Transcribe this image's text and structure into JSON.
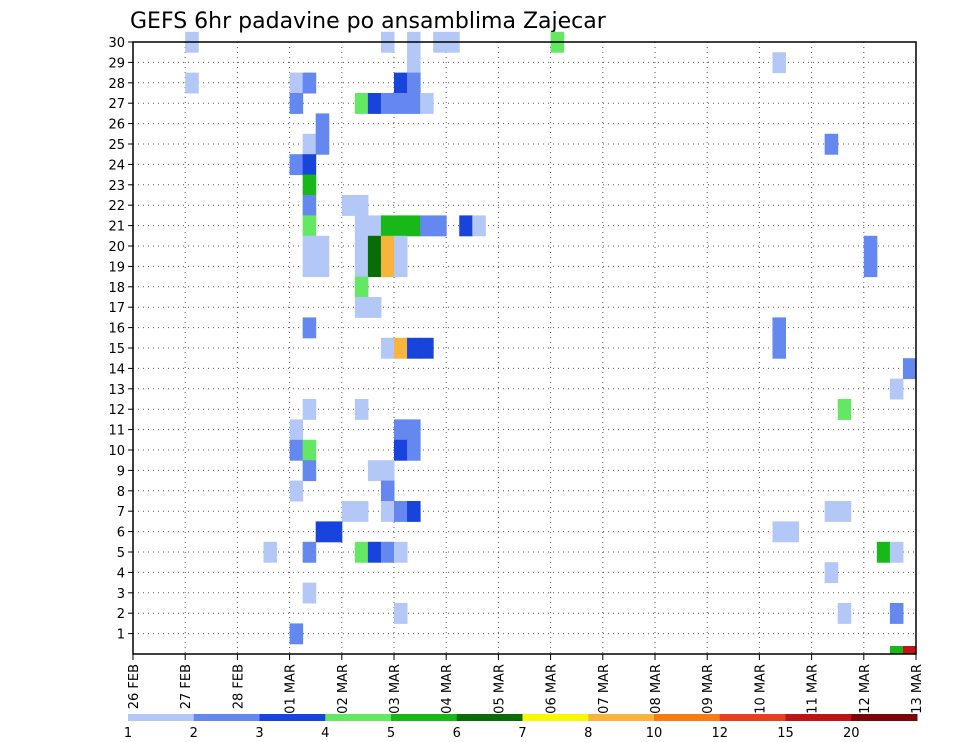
{
  "chart_data": {
    "type": "heatmap",
    "title": "GEFS 6hr padavine po ansamblima Zajecar",
    "x_tick_labels": [
      "26 FEB",
      "27 FEB",
      "28 FEB",
      "01 MAR",
      "02 MAR",
      "03 MAR",
      "04 MAR",
      "05 MAR",
      "06 MAR",
      "07 MAR",
      "08 MAR",
      "09 MAR",
      "10 MAR",
      "11 MAR",
      "12 MAR",
      "13 MAR"
    ],
    "y_tick_labels": [
      "1",
      "2",
      "3",
      "4",
      "5",
      "6",
      "7",
      "8",
      "9",
      "10",
      "11",
      "12",
      "13",
      "14",
      "15",
      "16",
      "17",
      "18",
      "19",
      "20",
      "21",
      "22",
      "23",
      "24",
      "25",
      "26",
      "27",
      "28",
      "29",
      "30"
    ],
    "ylim": [
      0,
      30
    ],
    "x_range_days": [
      0,
      15
    ],
    "time_step_hours": 6,
    "grid": true,
    "colorbar": {
      "placement": "bottom",
      "colors": [
        "#b4c8f8",
        "#6488f0",
        "#1844dc",
        "#64e864",
        "#18b818",
        "#086c08",
        "#f8f800",
        "#f8b43c",
        "#f87c14",
        "#e8401c",
        "#c01414",
        "#780808"
      ],
      "labels": [
        "1",
        "2",
        "3",
        "4",
        "5",
        "6",
        "7",
        "8",
        "10",
        "12",
        "15",
        "20"
      ]
    },
    "cells": [
      {
        "member": 30,
        "step": 4,
        "class": 0
      },
      {
        "member": 30,
        "step": 19,
        "class": 0
      },
      {
        "member": 30,
        "step": 21,
        "class": 0
      },
      {
        "member": 30,
        "step": 23,
        "class": 0
      },
      {
        "member": 30,
        "step": 24,
        "class": 0
      },
      {
        "member": 30,
        "step": 32,
        "class": 3
      },
      {
        "member": 29,
        "step": 21,
        "class": 0
      },
      {
        "member": 29,
        "step": 49,
        "class": 0
      },
      {
        "member": 28,
        "step": 4,
        "class": 0
      },
      {
        "member": 28,
        "step": 12,
        "class": 0
      },
      {
        "member": 28,
        "step": 13,
        "class": 1
      },
      {
        "member": 28,
        "step": 20,
        "class": 2
      },
      {
        "member": 28,
        "step": 21,
        "class": 1
      },
      {
        "member": 27,
        "step": 12,
        "class": 1
      },
      {
        "member": 27,
        "step": 17,
        "class": 3
      },
      {
        "member": 27,
        "step": 18,
        "class": 2
      },
      {
        "member": 27,
        "step": 19,
        "class": 1
      },
      {
        "member": 27,
        "step": 20,
        "class": 1
      },
      {
        "member": 27,
        "step": 21,
        "class": 1
      },
      {
        "member": 27,
        "step": 22,
        "class": 0
      },
      {
        "member": 26,
        "step": 14,
        "class": 1
      },
      {
        "member": 25,
        "step": 13,
        "class": 0
      },
      {
        "member": 25,
        "step": 14,
        "class": 1
      },
      {
        "member": 25,
        "step": 53,
        "class": 1
      },
      {
        "member": 24,
        "step": 12,
        "class": 1
      },
      {
        "member": 24,
        "step": 13,
        "class": 2
      },
      {
        "member": 23,
        "step": 13,
        "class": 4
      },
      {
        "member": 22,
        "step": 13,
        "class": 1
      },
      {
        "member": 22,
        "step": 16,
        "class": 0
      },
      {
        "member": 22,
        "step": 17,
        "class": 0
      },
      {
        "member": 21,
        "step": 13,
        "class": 3
      },
      {
        "member": 21,
        "step": 17,
        "class": 0
      },
      {
        "member": 21,
        "step": 18,
        "class": 0
      },
      {
        "member": 21,
        "step": 19,
        "class": 4
      },
      {
        "member": 21,
        "step": 20,
        "class": 4
      },
      {
        "member": 21,
        "step": 21,
        "class": 4
      },
      {
        "member": 21,
        "step": 22,
        "class": 1
      },
      {
        "member": 21,
        "step": 23,
        "class": 1
      },
      {
        "member": 21,
        "step": 25,
        "class": 2
      },
      {
        "member": 21,
        "step": 26,
        "class": 0
      },
      {
        "member": 20,
        "step": 13,
        "class": 0
      },
      {
        "member": 20,
        "step": 14,
        "class": 0
      },
      {
        "member": 20,
        "step": 17,
        "class": 0
      },
      {
        "member": 20,
        "step": 18,
        "class": 5
      },
      {
        "member": 20,
        "step": 19,
        "class": 7
      },
      {
        "member": 20,
        "step": 20,
        "class": 0
      },
      {
        "member": 20,
        "step": 56,
        "class": 1
      },
      {
        "member": 19,
        "step": 13,
        "class": 0
      },
      {
        "member": 19,
        "step": 14,
        "class": 0
      },
      {
        "member": 19,
        "step": 17,
        "class": 0
      },
      {
        "member": 19,
        "step": 18,
        "class": 5
      },
      {
        "member": 19,
        "step": 19,
        "class": 7
      },
      {
        "member": 19,
        "step": 20,
        "class": 0
      },
      {
        "member": 19,
        "step": 56,
        "class": 1
      },
      {
        "member": 18,
        "step": 17,
        "class": 3
      },
      {
        "member": 17,
        "step": 17,
        "class": 0
      },
      {
        "member": 17,
        "step": 18,
        "class": 0
      },
      {
        "member": 16,
        "step": 13,
        "class": 1
      },
      {
        "member": 16,
        "step": 49,
        "class": 1
      },
      {
        "member": 15,
        "step": 19,
        "class": 0
      },
      {
        "member": 15,
        "step": 20,
        "class": 7
      },
      {
        "member": 15,
        "step": 21,
        "class": 2
      },
      {
        "member": 15,
        "step": 22,
        "class": 2
      },
      {
        "member": 15,
        "step": 49,
        "class": 1
      },
      {
        "member": 14,
        "step": 59,
        "class": 1
      },
      {
        "member": 13,
        "step": 58,
        "class": 0
      },
      {
        "member": 12,
        "step": 13,
        "class": 0
      },
      {
        "member": 12,
        "step": 17,
        "class": 0
      },
      {
        "member": 12,
        "step": 54,
        "class": 3
      },
      {
        "member": 11,
        "step": 12,
        "class": 0
      },
      {
        "member": 11,
        "step": 20,
        "class": 1
      },
      {
        "member": 11,
        "step": 21,
        "class": 1
      },
      {
        "member": 10,
        "step": 12,
        "class": 1
      },
      {
        "member": 10,
        "step": 13,
        "class": 3
      },
      {
        "member": 10,
        "step": 20,
        "class": 2
      },
      {
        "member": 10,
        "step": 21,
        "class": 1
      },
      {
        "member": 9,
        "step": 13,
        "class": 1
      },
      {
        "member": 9,
        "step": 18,
        "class": 0
      },
      {
        "member": 9,
        "step": 19,
        "class": 0
      },
      {
        "member": 8,
        "step": 12,
        "class": 0
      },
      {
        "member": 8,
        "step": 19,
        "class": 1
      },
      {
        "member": 7,
        "step": 16,
        "class": 0
      },
      {
        "member": 7,
        "step": 17,
        "class": 0
      },
      {
        "member": 7,
        "step": 19,
        "class": 0
      },
      {
        "member": 7,
        "step": 20,
        "class": 1
      },
      {
        "member": 7,
        "step": 21,
        "class": 2
      },
      {
        "member": 7,
        "step": 53,
        "class": 0
      },
      {
        "member": 7,
        "step": 54,
        "class": 0
      },
      {
        "member": 6,
        "step": 14,
        "class": 2
      },
      {
        "member": 6,
        "step": 15,
        "class": 2
      },
      {
        "member": 6,
        "step": 49,
        "class": 0
      },
      {
        "member": 6,
        "step": 50,
        "class": 0
      },
      {
        "member": 5,
        "step": 10,
        "class": 0
      },
      {
        "member": 5,
        "step": 13,
        "class": 1
      },
      {
        "member": 5,
        "step": 17,
        "class": 3
      },
      {
        "member": 5,
        "step": 18,
        "class": 2
      },
      {
        "member": 5,
        "step": 19,
        "class": 1
      },
      {
        "member": 5,
        "step": 20,
        "class": 0
      },
      {
        "member": 5,
        "step": 57,
        "class": 4
      },
      {
        "member": 5,
        "step": 58,
        "class": 0
      },
      {
        "member": 4,
        "step": 53,
        "class": 0
      },
      {
        "member": 3,
        "step": 13,
        "class": 0
      },
      {
        "member": 2,
        "step": 20,
        "class": 0
      },
      {
        "member": 2,
        "step": 54,
        "class": 0
      },
      {
        "member": 2,
        "step": 58,
        "class": 1
      },
      {
        "member": 1,
        "step": 12,
        "class": 1
      }
    ],
    "bottom_row_marks": [
      {
        "step": 58,
        "class": 4
      },
      {
        "step": 59,
        "class": 10
      }
    ]
  }
}
